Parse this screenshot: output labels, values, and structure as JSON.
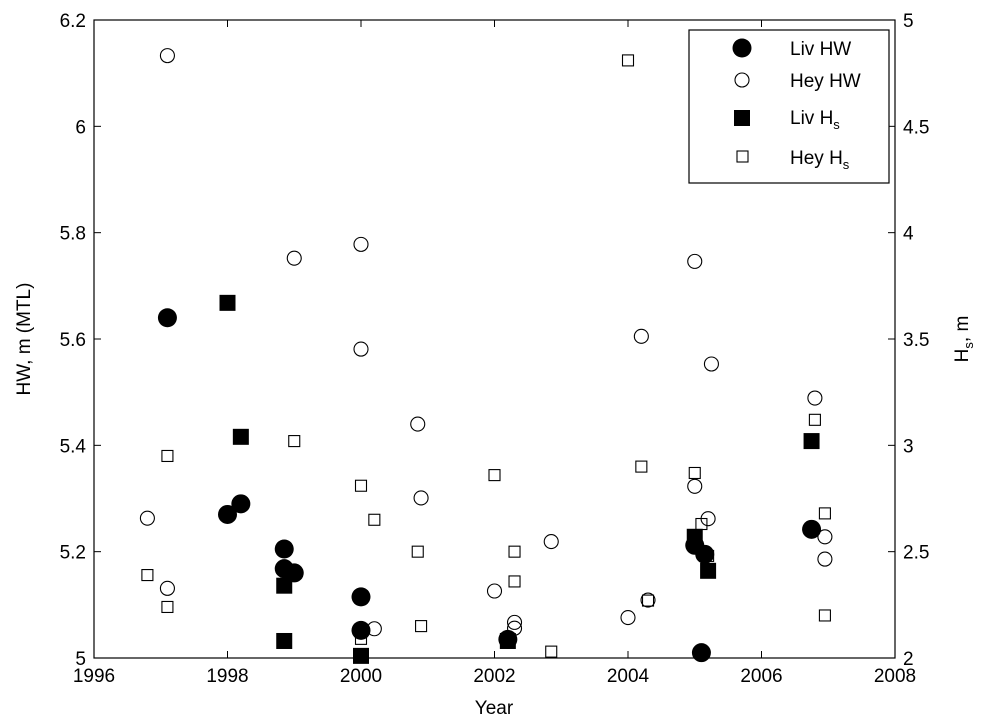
{
  "chart_data": {
    "type": "scatter",
    "xlabel": "Year",
    "ylabel_left": "HW, m (MTL)",
    "ylabel_right_main": "H",
    "ylabel_right_sub": "s",
    "ylabel_right_suffix": ", m",
    "xlim": [
      1996,
      2008
    ],
    "ylim_left": [
      5,
      6.2
    ],
    "ylim_right": [
      2,
      5
    ],
    "x_ticks": [
      "1996",
      "1998",
      "2000",
      "2002",
      "2004",
      "2006",
      "2008"
    ],
    "y_left_ticks": [
      "5",
      "5.2",
      "5.4",
      "5.6",
      "5.8",
      "6",
      "6.2"
    ],
    "y_right_ticks": [
      "2",
      "2.5",
      "3",
      "3.5",
      "4",
      "4.5",
      "5"
    ],
    "grid": false,
    "legend_position": "top-right",
    "series": [
      {
        "name": "Liv HW",
        "name_main": "Liv HW",
        "name_sub": "",
        "axis": "left",
        "marker": "filled-circle",
        "points": [
          [
            1997.1,
            5.64
          ],
          [
            1998.0,
            5.27
          ],
          [
            1998.2,
            5.29
          ],
          [
            1998.85,
            5.205
          ],
          [
            1998.85,
            5.168
          ],
          [
            1999.0,
            5.16
          ],
          [
            2000.0,
            5.115
          ],
          [
            2000.0,
            5.052
          ],
          [
            2002.2,
            5.035
          ],
          [
            2005.0,
            5.212
          ],
          [
            2005.15,
            5.195
          ],
          [
            2005.1,
            5.01
          ],
          [
            2006.75,
            5.242
          ]
        ]
      },
      {
        "name": "Hey HW",
        "name_main": "Hey HW",
        "name_sub": "",
        "axis": "left",
        "marker": "open-circle",
        "points": [
          [
            1996.8,
            5.263
          ],
          [
            1997.1,
            6.133
          ],
          [
            1997.1,
            5.131
          ],
          [
            1999.0,
            5.752
          ],
          [
            2000.0,
            5.778
          ],
          [
            2000.0,
            5.581
          ],
          [
            2000.2,
            5.055
          ],
          [
            2000.85,
            5.44
          ],
          [
            2000.9,
            5.301
          ],
          [
            2002.0,
            5.126
          ],
          [
            2002.3,
            5.067
          ],
          [
            2002.3,
            5.056
          ],
          [
            2002.85,
            5.219
          ],
          [
            2004.0,
            5.076
          ],
          [
            2004.2,
            5.605
          ],
          [
            2004.3,
            5.109
          ],
          [
            2005.0,
            5.746
          ],
          [
            2005.0,
            5.323
          ],
          [
            2005.2,
            5.262
          ],
          [
            2005.25,
            5.553
          ],
          [
            2006.8,
            5.489
          ],
          [
            2006.95,
            5.228
          ],
          [
            2006.95,
            5.186
          ]
        ]
      },
      {
        "name": "Liv Hs",
        "name_main": "Liv H",
        "name_sub": "s",
        "axis": "right",
        "marker": "filled-square",
        "points": [
          [
            1998.0,
            3.67
          ],
          [
            1998.2,
            3.04
          ],
          [
            1998.85,
            2.34
          ],
          [
            1998.85,
            2.08
          ],
          [
            2000.0,
            2.01
          ],
          [
            2002.2,
            2.08
          ],
          [
            2005.0,
            2.57
          ],
          [
            2005.2,
            2.41
          ],
          [
            2006.75,
            3.02
          ]
        ]
      },
      {
        "name": "Hey Hs",
        "name_main": "Hey H",
        "name_sub": "s",
        "axis": "right",
        "marker": "open-square",
        "points": [
          [
            1996.8,
            2.39
          ],
          [
            1997.1,
            2.95
          ],
          [
            1997.1,
            2.24
          ],
          [
            1999.0,
            3.02
          ],
          [
            2000.0,
            2.81
          ],
          [
            2000.0,
            2.09
          ],
          [
            2000.2,
            2.65
          ],
          [
            2000.85,
            2.5
          ],
          [
            2000.9,
            2.15
          ],
          [
            2002.0,
            2.86
          ],
          [
            2002.3,
            2.5
          ],
          [
            2002.3,
            2.36
          ],
          [
            2002.85,
            2.03
          ],
          [
            2004.0,
            4.81
          ],
          [
            2004.2,
            2.9
          ],
          [
            2004.3,
            2.27
          ],
          [
            2005.0,
            2.87
          ],
          [
            2005.0,
            2.57
          ],
          [
            2005.1,
            2.63
          ],
          [
            2005.2,
            2.48
          ],
          [
            2006.8,
            3.12
          ],
          [
            2006.95,
            2.68
          ],
          [
            2006.95,
            2.2
          ]
        ]
      }
    ]
  }
}
